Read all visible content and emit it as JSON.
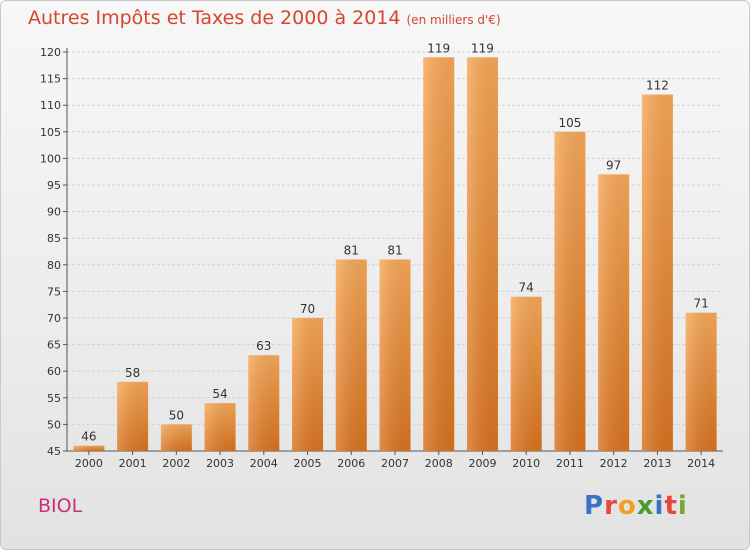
{
  "page": {
    "title": "Autres Impôts et Taxes de 2000 à 2014",
    "subtitle": "(en milliers d'€)",
    "commune": "BIOL",
    "logo": "Proxiti",
    "colors": {
      "title": "#d4462e",
      "commune": "#c8307a",
      "bar_light": "#f7a857",
      "bar_dark": "#d9731f",
      "logo_letters": [
        "#3a72c4",
        "#e8453c",
        "#f2a024",
        "#4c9a2a",
        "#3a72c4",
        "#e8453c",
        "#7aa82e"
      ]
    }
  },
  "chart_data": {
    "type": "bar",
    "categories": [
      "2000",
      "2001",
      "2002",
      "2003",
      "2004",
      "2005",
      "2006",
      "2007",
      "2008",
      "2009",
      "2010",
      "2011",
      "2012",
      "2013",
      "2014"
    ],
    "values": [
      46,
      58,
      50,
      54,
      63,
      70,
      81,
      81,
      119,
      119,
      74,
      105,
      97,
      112,
      71
    ],
    "data_labels": [
      "46",
      "58",
      "50",
      "54",
      "63",
      "70",
      "81",
      "81",
      "119",
      "119",
      "74",
      "105",
      "97",
      "112",
      "71"
    ],
    "ylim": [
      45,
      120
    ],
    "yticks": [
      45,
      50,
      55,
      60,
      65,
      70,
      75,
      80,
      85,
      90,
      95,
      100,
      105,
      110,
      115,
      120
    ],
    "ytick_labels": [
      "45",
      "50",
      "55",
      "60",
      "65",
      "70",
      "75",
      "80",
      "85",
      "90",
      "95",
      "100",
      "105",
      "110",
      "115",
      "120"
    ],
    "grid": true,
    "xlabel": "",
    "ylabel": ""
  }
}
